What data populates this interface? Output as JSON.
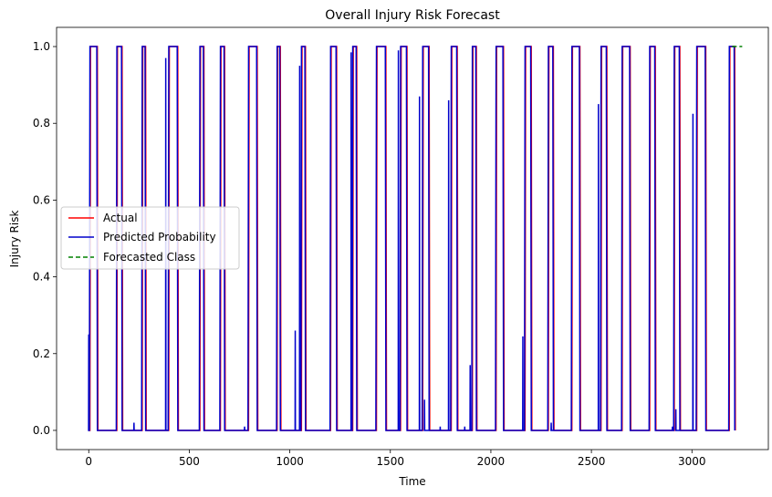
{
  "chart_data": {
    "type": "line",
    "title": "Overall Injury Risk Forecast",
    "xlabel": "Time",
    "ylabel": "Injury Risk",
    "xlim": [
      -160,
      3380
    ],
    "ylim": [
      -0.05,
      1.05
    ],
    "xticks": [
      0,
      500,
      1000,
      1500,
      2000,
      2500,
      3000
    ],
    "yticks": [
      0.0,
      0.2,
      0.4,
      0.6,
      0.8,
      1.0
    ],
    "ytick_labels": [
      "0.0",
      "0.2",
      "0.4",
      "0.6",
      "0.8",
      "1.0"
    ],
    "grid": false,
    "legend_position": "center-left",
    "legend": [
      {
        "label": "Actual",
        "color": "#ff0000",
        "style": "solid"
      },
      {
        "label": "Predicted Probability",
        "color": "#0000cc",
        "style": "solid"
      },
      {
        "label": "Forecasted Class",
        "color": "#008000",
        "style": "dashed"
      }
    ],
    "high_intervals": [
      [
        3,
        40
      ],
      [
        137,
        163
      ],
      [
        263,
        280
      ],
      [
        395,
        440
      ],
      [
        550,
        570
      ],
      [
        652,
        673
      ],
      [
        792,
        835
      ],
      [
        934,
        950
      ],
      [
        1055,
        1075
      ],
      [
        1200,
        1230
      ],
      [
        1310,
        1330
      ],
      [
        1428,
        1475
      ],
      [
        1548,
        1580
      ],
      [
        1658,
        1690
      ],
      [
        1800,
        1830
      ],
      [
        1905,
        1925
      ],
      [
        2023,
        2060
      ],
      [
        2167,
        2198
      ],
      [
        2283,
        2308
      ],
      [
        2400,
        2440
      ],
      [
        2545,
        2574
      ],
      [
        2650,
        2690
      ],
      [
        2787,
        2815
      ],
      [
        2909,
        2937
      ],
      [
        3021,
        3066
      ],
      [
        3183,
        3210
      ]
    ],
    "spikes": [
      {
        "x": 0,
        "y": 0.25
      },
      {
        "x": 225,
        "y": 0.02
      },
      {
        "x": 383,
        "y": 0.97
      },
      {
        "x": 775,
        "y": 0.01
      },
      {
        "x": 1027,
        "y": 0.26
      },
      {
        "x": 1049,
        "y": 0.95
      },
      {
        "x": 1305,
        "y": 0.985
      },
      {
        "x": 1540,
        "y": 0.99
      },
      {
        "x": 1645,
        "y": 0.87
      },
      {
        "x": 1670,
        "y": 0.08
      },
      {
        "x": 1748,
        "y": 0.01
      },
      {
        "x": 1790,
        "y": 0.86
      },
      {
        "x": 1870,
        "y": 0.01
      },
      {
        "x": 1897,
        "y": 0.17
      },
      {
        "x": 2159,
        "y": 0.245
      },
      {
        "x": 2300,
        "y": 0.02
      },
      {
        "x": 2535,
        "y": 0.85
      },
      {
        "x": 2903,
        "y": 0.01
      },
      {
        "x": 2920,
        "y": 0.055
      },
      {
        "x": 3005,
        "y": 0.825
      }
    ],
    "series": [
      {
        "name": "Actual",
        "color": "#ff0000",
        "x_range": [
          0,
          3210
        ]
      },
      {
        "name": "Predicted Probability",
        "color": "#0000cc",
        "x_range": [
          0,
          3210
        ]
      },
      {
        "name": "Forecasted Class",
        "color": "#008000",
        "x": [
          3200,
          3250
        ],
        "values": [
          1.0,
          1.0
        ]
      }
    ]
  }
}
